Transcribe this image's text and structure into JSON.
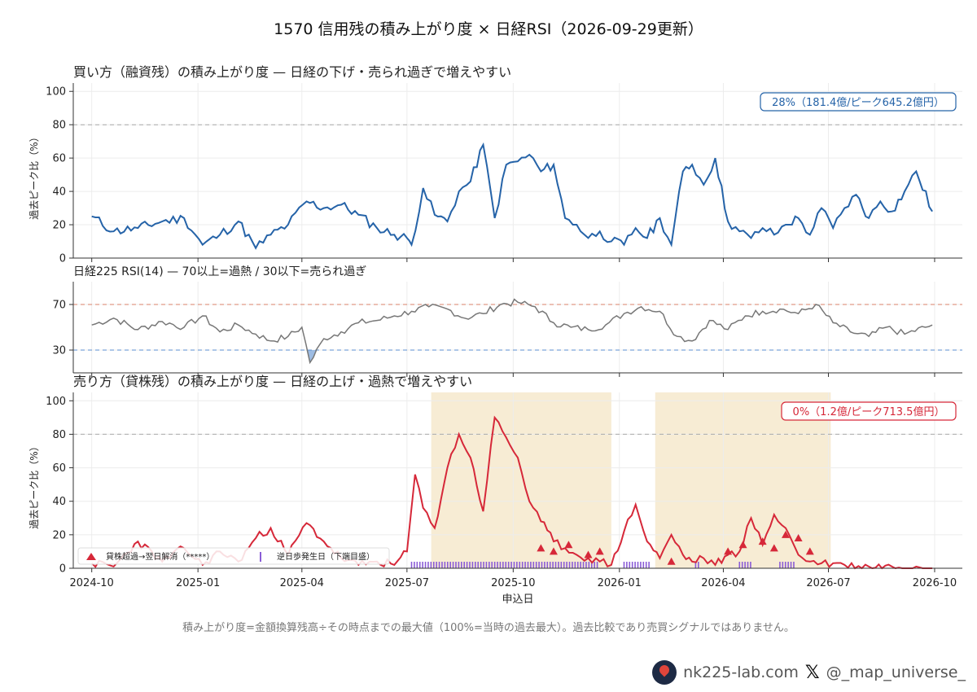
{
  "title": "1570 信用残の積み上がり度 × 日経RSI（2026-09-29更新）",
  "footer_note": "積み上がり度=金額換算残高÷その時点までの最大値（100%=当時の過去最大）。過去比較であり売買シグナルではありません。",
  "brand": {
    "site": "nk225-lab.com",
    "x_icon": "x-logo-icon",
    "handle": "@_map_universe_"
  },
  "colors": {
    "buy": "#2563a8",
    "rsi": "#777777",
    "sell": "#d62839",
    "marker": "#d62839",
    "reverse_day": "#8a5cd6",
    "shade": "#f7ecd4",
    "overbought": "#d9826a",
    "oversold": "#5b8fd1",
    "ref80": "#aaaaaa"
  },
  "chart_data": [
    {
      "type": "line",
      "title": "買い方（融資残）の積み上がり度 — 日経の下げ・売られ過ぎで増えやすい",
      "ylabel": "過去ピーク比（%）",
      "ylim": [
        0,
        105
      ],
      "yticks": [
        "0",
        "20",
        "40",
        "60",
        "80",
        "100"
      ],
      "grid": true,
      "reference_line": 80,
      "badge": "28%（181.4億/ピーク645.2億円）",
      "series": [
        {
          "x": [
            "2024-10-01",
            "2024-10-20",
            "2024-11-10",
            "2024-12-01",
            "2024-12-20",
            "2025-01-05",
            "2025-01-20",
            "2025-02-05",
            "2025-02-20",
            "2025-03-05",
            "2025-03-20",
            "2025-04-05",
            "2025-04-20",
            "2025-05-05",
            "2025-05-20",
            "2025-06-05",
            "2025-06-20",
            "2025-07-01",
            "2025-07-05",
            "2025-07-15",
            "2025-07-25",
            "2025-08-05",
            "2025-08-15",
            "2025-08-25",
            "2025-09-05",
            "2025-09-15",
            "2025-09-25",
            "2025-10-05",
            "2025-10-15",
            "2025-10-25",
            "2025-11-05",
            "2025-11-15",
            "2025-11-25",
            "2025-12-05",
            "2025-12-15",
            "2025-12-25",
            "2026-01-05",
            "2026-01-15",
            "2026-01-25",
            "2026-02-05",
            "2026-02-15",
            "2026-02-25",
            "2026-03-05",
            "2026-03-15",
            "2026-03-25",
            "2026-04-05",
            "2026-04-15",
            "2026-04-25",
            "2026-05-05",
            "2026-05-15",
            "2026-05-25",
            "2026-06-05",
            "2026-06-15",
            "2026-06-25",
            "2026-07-05",
            "2026-07-15",
            "2026-07-25",
            "2026-08-05",
            "2026-08-15",
            "2026-08-25",
            "2026-09-05",
            "2026-09-15",
            "2026-09-29"
          ],
          "values": [
            25,
            16,
            18,
            22,
            24,
            8,
            14,
            22,
            6,
            14,
            20,
            34,
            30,
            32,
            26,
            18,
            14,
            12,
            8,
            42,
            26,
            22,
            40,
            46,
            68,
            24,
            56,
            58,
            62,
            52,
            56,
            24,
            20,
            12,
            16,
            10,
            8,
            18,
            12,
            24,
            8,
            52,
            56,
            44,
            60,
            22,
            16,
            12,
            18,
            14,
            20,
            24,
            14,
            30,
            18,
            30,
            38,
            24,
            34,
            28,
            40,
            52,
            28
          ]
        }
      ]
    },
    {
      "type": "line",
      "title": "日経225 RSI(14) — 70以上=過熱 / 30以下=売られ過ぎ",
      "ylim": [
        10,
        90
      ],
      "yticks": [
        "30",
        "70"
      ],
      "overbought": 70,
      "oversold": 30,
      "series": [
        {
          "x": [
            "2024-10-01",
            "2024-10-20",
            "2024-11-10",
            "2024-12-01",
            "2024-12-20",
            "2025-01-05",
            "2025-01-20",
            "2025-02-05",
            "2025-02-20",
            "2025-03-05",
            "2025-03-20",
            "2025-04-01",
            "2025-04-08",
            "2025-04-20",
            "2025-05-05",
            "2025-05-20",
            "2025-06-05",
            "2025-06-20",
            "2025-07-05",
            "2025-07-20",
            "2025-08-05",
            "2025-08-20",
            "2025-09-05",
            "2025-09-20",
            "2025-10-05",
            "2025-10-20",
            "2025-11-05",
            "2025-11-20",
            "2025-12-05",
            "2025-12-20",
            "2026-01-05",
            "2026-01-20",
            "2026-02-05",
            "2026-02-20",
            "2026-03-05",
            "2026-03-20",
            "2026-04-05",
            "2026-04-20",
            "2026-05-05",
            "2026-05-20",
            "2026-06-05",
            "2026-06-20",
            "2026-07-05",
            "2026-07-20",
            "2026-08-05",
            "2026-08-20",
            "2026-09-05",
            "2026-09-29"
          ],
          "values": [
            52,
            58,
            48,
            55,
            50,
            60,
            46,
            52,
            44,
            38,
            42,
            50,
            19,
            40,
            46,
            54,
            56,
            60,
            64,
            68,
            66,
            58,
            62,
            70,
            72,
            68,
            54,
            50,
            48,
            52,
            62,
            68,
            64,
            42,
            38,
            56,
            48,
            60,
            64,
            66,
            62,
            70,
            54,
            46,
            42,
            50,
            44,
            52
          ]
        }
      ]
    },
    {
      "type": "line",
      "title": "売り方（貸株残）の積み上がり度 — 日経の上げ・過熱で増えやすい",
      "xlabel": "申込日",
      "ylabel": "過去ピーク比（%）",
      "ylim": [
        0,
        105
      ],
      "yticks": [
        "0",
        "20",
        "40",
        "60",
        "80",
        "100"
      ],
      "xticks": [
        "2024-10",
        "2025-01",
        "2025-04",
        "2025-07",
        "2025-10",
        "2026-01",
        "2026-04",
        "2026-07",
        "2026-10"
      ],
      "xlim": [
        "2024-09-15",
        "2026-10-25"
      ],
      "grid": true,
      "reference_line": 80,
      "badge": "0%（1.2億/ピーク713.5億円）",
      "legend": {
        "placement": "lower-left",
        "entries": [
          "貸株超過→翌日解消（*****）",
          "逆日歩発生日（下端目盛）"
        ]
      },
      "shaded_ranges": [
        [
          "2025-07-22",
          "2025-12-25"
        ],
        [
          "2026-02-01",
          "2026-07-03"
        ]
      ],
      "series": [
        {
          "x": [
            "2024-10-01",
            "2024-10-20",
            "2024-11-10",
            "2024-12-01",
            "2024-12-20",
            "2025-01-05",
            "2025-01-20",
            "2025-02-05",
            "2025-02-20",
            "2025-03-05",
            "2025-03-20",
            "2025-04-05",
            "2025-04-20",
            "2025-05-05",
            "2025-05-20",
            "2025-06-05",
            "2025-06-20",
            "2025-07-01",
            "2025-07-08",
            "2025-07-15",
            "2025-07-25",
            "2025-08-05",
            "2025-08-15",
            "2025-08-25",
            "2025-09-05",
            "2025-09-15",
            "2025-09-25",
            "2025-10-05",
            "2025-10-15",
            "2025-10-25",
            "2025-11-05",
            "2025-11-15",
            "2025-11-25",
            "2025-12-05",
            "2025-12-15",
            "2025-12-25",
            "2026-01-05",
            "2026-01-15",
            "2026-01-25",
            "2026-02-05",
            "2026-02-15",
            "2026-02-25",
            "2026-03-05",
            "2026-03-15",
            "2026-03-25",
            "2026-04-05",
            "2026-04-15",
            "2026-04-25",
            "2026-05-05",
            "2026-05-15",
            "2026-05-25",
            "2026-06-05",
            "2026-06-15",
            "2026-06-25",
            "2026-07-05",
            "2026-07-15",
            "2026-08-05",
            "2026-08-25",
            "2026-09-15",
            "2026-09-29"
          ],
          "values": [
            3,
            1,
            16,
            4,
            12,
            2,
            10,
            4,
            18,
            24,
            8,
            27,
            16,
            6,
            2,
            4,
            2,
            10,
            56,
            36,
            24,
            60,
            80,
            66,
            34,
            90,
            78,
            66,
            40,
            28,
            16,
            12,
            8,
            6,
            4,
            2,
            22,
            38,
            16,
            6,
            20,
            8,
            4,
            6,
            2,
            8,
            10,
            30,
            14,
            32,
            24,
            8,
            4,
            3,
            3,
            2,
            1,
            1,
            1,
            0
          ]
        }
      ],
      "markers_x": [
        "2025-10-25",
        "2025-11-05",
        "2025-11-18",
        "2025-12-05",
        "2025-12-15",
        "2026-02-15",
        "2026-04-05",
        "2026-04-18",
        "2026-05-05",
        "2026-05-15",
        "2026-05-25",
        "2026-06-05",
        "2026-06-15"
      ],
      "markers_y": [
        12,
        10,
        14,
        8,
        10,
        4,
        10,
        14,
        16,
        12,
        20,
        18,
        10
      ],
      "reverse_day_ranges": [
        [
          "2025-07-05",
          "2025-12-15"
        ],
        [
          "2026-01-05",
          "2026-01-28"
        ],
        [
          "2026-03-08",
          "2026-03-12"
        ],
        [
          "2026-04-15",
          "2026-04-25"
        ],
        [
          "2026-05-20",
          "2026-06-02"
        ]
      ]
    }
  ]
}
